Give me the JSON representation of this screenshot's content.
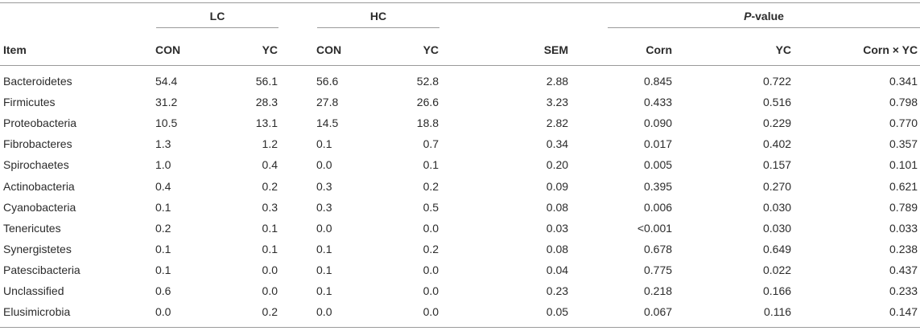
{
  "table": {
    "groups": {
      "lc": "LC",
      "hc": "HC",
      "pvalue_italic": "P",
      "pvalue_rest": "-value"
    },
    "columns": {
      "item": "Item",
      "lc_con": "CON",
      "lc_yc": "YC",
      "hc_con": "CON",
      "hc_yc": "YC",
      "sem": "SEM",
      "corn": "Corn",
      "yc": "YC",
      "interaction": "Corn × YC"
    },
    "rows": [
      {
        "item": "Bacteroidetes",
        "lc_con": "54.4",
        "lc_yc": "56.1",
        "hc_con": "56.6",
        "hc_yc": "52.8",
        "sem": "2.88",
        "corn": "0.845",
        "yc": "0.722",
        "interaction": "0.341"
      },
      {
        "item": "Firmicutes",
        "lc_con": "31.2",
        "lc_yc": "28.3",
        "hc_con": "27.8",
        "hc_yc": "26.6",
        "sem": "3.23",
        "corn": "0.433",
        "yc": "0.516",
        "interaction": "0.798"
      },
      {
        "item": "Proteobacteria",
        "lc_con": "10.5",
        "lc_yc": "13.1",
        "hc_con": "14.5",
        "hc_yc": "18.8",
        "sem": "2.82",
        "corn": "0.090",
        "yc": "0.229",
        "interaction": "0.770"
      },
      {
        "item": "Fibrobacteres",
        "lc_con": "1.3",
        "lc_yc": "1.2",
        "hc_con": "0.1",
        "hc_yc": "0.7",
        "sem": "0.34",
        "corn": "0.017",
        "yc": "0.402",
        "interaction": "0.357"
      },
      {
        "item": "Spirochaetes",
        "lc_con": "1.0",
        "lc_yc": "0.4",
        "hc_con": "0.0",
        "hc_yc": "0.1",
        "sem": "0.20",
        "corn": "0.005",
        "yc": "0.157",
        "interaction": "0.101"
      },
      {
        "item": "Actinobacteria",
        "lc_con": "0.4",
        "lc_yc": "0.2",
        "hc_con": "0.3",
        "hc_yc": "0.2",
        "sem": "0.09",
        "corn": "0.395",
        "yc": "0.270",
        "interaction": "0.621"
      },
      {
        "item": "Cyanobacteria",
        "lc_con": "0.1",
        "lc_yc": "0.3",
        "hc_con": "0.3",
        "hc_yc": "0.5",
        "sem": "0.08",
        "corn": "0.006",
        "yc": "0.030",
        "interaction": "0.789"
      },
      {
        "item": "Tenericutes",
        "lc_con": "0.2",
        "lc_yc": "0.1",
        "hc_con": "0.0",
        "hc_yc": "0.0",
        "sem": "0.03",
        "corn": "<0.001",
        "yc": "0.030",
        "interaction": "0.033"
      },
      {
        "item": "Synergistetes",
        "lc_con": "0.1",
        "lc_yc": "0.1",
        "hc_con": "0.1",
        "hc_yc": "0.2",
        "sem": "0.08",
        "corn": "0.678",
        "yc": "0.649",
        "interaction": "0.238"
      },
      {
        "item": "Patescibacteria",
        "lc_con": "0.1",
        "lc_yc": "0.0",
        "hc_con": "0.1",
        "hc_yc": "0.0",
        "sem": "0.04",
        "corn": "0.775",
        "yc": "0.022",
        "interaction": "0.437"
      },
      {
        "item": "Unclassified",
        "lc_con": "0.6",
        "lc_yc": "0.0",
        "hc_con": "0.1",
        "hc_yc": "0.0",
        "sem": "0.23",
        "corn": "0.218",
        "yc": "0.166",
        "interaction": "0.233"
      },
      {
        "item": "Elusimicrobia",
        "lc_con": "0.0",
        "lc_yc": "0.2",
        "hc_con": "0.0",
        "hc_yc": "0.0",
        "sem": "0.05",
        "corn": "0.067",
        "yc": "0.116",
        "interaction": "0.147"
      }
    ]
  }
}
